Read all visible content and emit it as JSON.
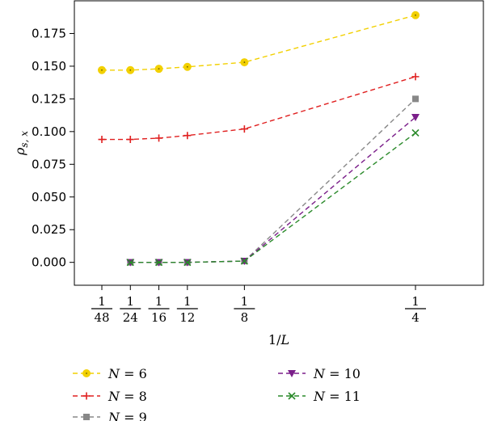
{
  "chart_data": {
    "type": "line",
    "xlabel_italic": "L",
    "xlabel_prefix": "1/",
    "ylabel_main": "ρ",
    "ylabel_sub": "s, x",
    "x_scale": "reciprocal",
    "x": [
      48,
      24,
      16,
      12,
      8,
      4
    ],
    "x_tick_numerators": [
      "1",
      "1",
      "1",
      "1",
      "1",
      "1"
    ],
    "x_tick_denominators": [
      "48",
      "24",
      "16",
      "12",
      "8",
      "4"
    ],
    "ylim": [
      -0.0175,
      0.2
    ],
    "y_ticks": [
      0.0,
      0.025,
      0.05,
      0.075,
      0.1,
      0.125,
      0.15,
      0.175
    ],
    "y_tick_labels": [
      "0.000",
      "0.025",
      "0.050",
      "0.075",
      "0.100",
      "0.125",
      "0.150",
      "0.175"
    ],
    "grid": false,
    "legend_placement": "bottom",
    "series": [
      {
        "name": "6",
        "color": "#f2d000",
        "marker": "circle",
        "points": [
          [
            48,
            0.147
          ],
          [
            24,
            0.147
          ],
          [
            16,
            0.148
          ],
          [
            12,
            0.1495
          ],
          [
            8,
            0.153
          ],
          [
            4,
            0.189
          ]
        ]
      },
      {
        "name": "8",
        "color": "#e02020",
        "marker": "plus",
        "points": [
          [
            48,
            0.094
          ],
          [
            24,
            0.094
          ],
          [
            16,
            0.095
          ],
          [
            12,
            0.097
          ],
          [
            8,
            0.102
          ],
          [
            4,
            0.142
          ]
        ]
      },
      {
        "name": "9",
        "color": "#888888",
        "marker": "square",
        "points": [
          [
            24,
            0.0
          ],
          [
            16,
            0.0
          ],
          [
            12,
            0.0
          ],
          [
            8,
            0.001
          ],
          [
            4,
            0.125
          ]
        ]
      },
      {
        "name": "10",
        "color": "#7b1f8a",
        "marker": "triangle-down",
        "points": [
          [
            24,
            0.0
          ],
          [
            16,
            0.0
          ],
          [
            12,
            0.0
          ],
          [
            8,
            0.001
          ],
          [
            4,
            0.111
          ]
        ]
      },
      {
        "name": "11",
        "color": "#2a8a2a",
        "marker": "x",
        "points": [
          [
            24,
            0.0
          ],
          [
            16,
            0.0
          ],
          [
            12,
            0.0
          ],
          [
            8,
            0.001
          ],
          [
            4,
            0.099
          ]
        ]
      }
    ],
    "legend_var": "N",
    "legend_eq": " = "
  }
}
